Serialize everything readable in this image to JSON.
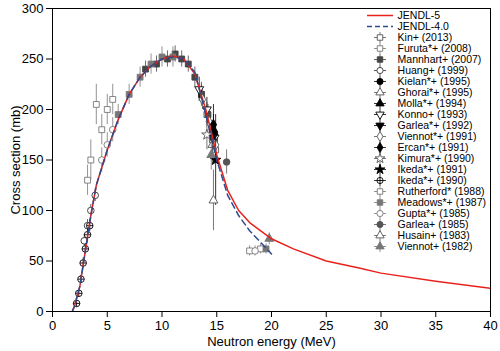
{
  "chart_data": {
    "type": "line",
    "x_label": "Neutron energy (MeV)",
    "y_label": "Cross section (mb)",
    "xlim": [
      0,
      40
    ],
    "xticks": [
      0,
      5,
      10,
      15,
      20,
      25,
      30,
      35,
      40
    ],
    "ylim": [
      0,
      300
    ],
    "yticks": [
      0,
      50,
      100,
      150,
      200,
      250,
      300
    ],
    "grid": false,
    "legend": "upper right",
    "series": [
      {
        "name": "JENDL-5",
        "type": "line",
        "line_style": "solid",
        "color": "#e8221b",
        "x": [
          1.8,
          2,
          2.5,
          3,
          3.5,
          4,
          5,
          6,
          7,
          8,
          9,
          10,
          11,
          12,
          13,
          14,
          15,
          16,
          17,
          18,
          20,
          22,
          25,
          28,
          30,
          35,
          40
        ],
        "values": [
          0,
          5,
          25,
          60,
          95,
          125,
          160,
          190,
          215,
          232,
          243,
          250,
          253,
          250,
          235,
          200,
          155,
          120,
          100,
          88,
          72,
          62,
          50,
          43,
          38,
          30,
          23
        ]
      },
      {
        "name": "JENDL-4.0",
        "type": "line",
        "line_style": "dashed",
        "color": "#2e4a8c",
        "x": [
          1.8,
          2,
          2.5,
          3,
          3.5,
          4,
          5,
          6,
          7,
          8,
          9,
          10,
          11,
          12,
          13,
          14,
          15,
          16,
          17,
          18,
          20
        ],
        "values": [
          0,
          5,
          25,
          60,
          95,
          125,
          160,
          190,
          215,
          232,
          243,
          250,
          252,
          250,
          237,
          195,
          150,
          115,
          95,
          80,
          57
        ]
      },
      {
        "name": "Kin+ (2013)",
        "type": "scatter",
        "marker": "open square",
        "color": "#555555",
        "x": [
          13.6,
          14.1,
          14.6,
          14.9
        ],
        "values": [
          215,
          195,
          170,
          160
        ],
        "errors": [
          12,
          12,
          10,
          10
        ]
      },
      {
        "name": "Furuta*+ (2008)",
        "type": "scatter",
        "marker": "open square",
        "color": "#777777",
        "x": [
          3.2,
          3.5,
          4.0,
          4.5,
          5.0,
          5.5
        ],
        "values": [
          130,
          150,
          205,
          180,
          200,
          210
        ],
        "errors": [
          15,
          20,
          20,
          15,
          15,
          15
        ]
      },
      {
        "name": "Mannhart+ (2007)",
        "type": "scatter",
        "marker": "filled square",
        "color": "#444444",
        "x": [
          8.5,
          9.5,
          10.5,
          11.2,
          11.8,
          12.4,
          13.0,
          13.6,
          14.2,
          14.8
        ],
        "values": [
          240,
          245,
          250,
          255,
          250,
          245,
          232,
          215,
          195,
          170
        ],
        "errors": [
          8,
          8,
          8,
          8,
          8,
          8,
          10,
          10,
          10,
          10
        ]
      },
      {
        "name": "Huang+ (1999)",
        "type": "scatter",
        "marker": "open circle",
        "color": "#333333",
        "x": [
          2.9,
          3.2,
          3.5,
          3.9
        ],
        "values": [
          70,
          85,
          100,
          115
        ],
        "errors": [
          6,
          6,
          6,
          6
        ]
      },
      {
        "name": "Kielan*+ (1995)",
        "type": "scatter",
        "marker": "filled circle",
        "color": "#000000",
        "x": [
          14.8
        ],
        "values": [
          175
        ],
        "errors": [
          10
        ]
      },
      {
        "name": "Ghorai*+ (1995)",
        "type": "scatter",
        "marker": "open triangle",
        "color": "#555555",
        "x": [
          14.6
        ],
        "values": [
          165
        ],
        "errors": [
          20
        ]
      },
      {
        "name": "Molla*+ (1994)",
        "type": "scatter",
        "marker": "filled triangle",
        "color": "#000000",
        "x": [
          14.7
        ],
        "values": [
          180
        ],
        "errors": [
          15
        ]
      },
      {
        "name": "Konno+ (1993)",
        "type": "scatter",
        "marker": "open triangle-down",
        "color": "#000000",
        "x": [
          13.4,
          14.1,
          14.8
        ],
        "values": [
          220,
          200,
          172
        ],
        "errors": [
          12,
          12,
          12
        ]
      },
      {
        "name": "Garlea*+ (1992)",
        "type": "scatter",
        "marker": "filled triangle-down",
        "color": "#000000",
        "x": [
          14.6
        ],
        "values": [
          172
        ],
        "errors": [
          10
        ]
      },
      {
        "name": "Viennot*+ (1991)",
        "type": "scatter",
        "marker": "open diamond",
        "color": "#555555",
        "x": [
          13.7,
          14.3,
          14.9
        ],
        "values": [
          210,
          188,
          165
        ],
        "errors": [
          10,
          10,
          10
        ]
      },
      {
        "name": "Ercan*+ (1991)",
        "type": "scatter",
        "marker": "filled diamond",
        "color": "#000000",
        "x": [
          14.7
        ],
        "values": [
          185
        ],
        "errors": [
          20
        ]
      },
      {
        "name": "Kimura*+ (1990)",
        "type": "scatter",
        "marker": "open star",
        "color": "#555555",
        "x": [
          14.1
        ],
        "values": [
          175
        ],
        "errors": [
          15
        ]
      },
      {
        "name": "Ikeda*+ (1991)",
        "type": "scatter",
        "marker": "filled star",
        "color": "#000000",
        "x": [
          14.9
        ],
        "values": [
          150
        ],
        "errors": [
          45
        ]
      },
      {
        "name": "Ikeda*+ (1990)",
        "type": "scatter",
        "marker": "open circle-plus",
        "color": "#000000",
        "x": [
          2.2,
          2.4,
          2.6,
          2.8,
          3.0,
          3.2,
          3.4
        ],
        "values": [
          8,
          18,
          32,
          48,
          62,
          76,
          85
        ],
        "errors": [
          3,
          3,
          4,
          5,
          5,
          6,
          6
        ]
      },
      {
        "name": "Rutherford* (1988)",
        "type": "scatter",
        "marker": "open square",
        "color": "#777777",
        "x": [
          18.0,
          19.0
        ],
        "values": [
          60,
          62
        ],
        "errors": [
          5,
          5
        ]
      },
      {
        "name": "Meadows*+ (1987)",
        "type": "scatter",
        "marker": "filled square",
        "color": "#777777",
        "x": [
          6.0,
          7.0,
          8.0,
          9.0,
          10.0,
          11.0,
          19.5
        ],
        "values": [
          195,
          215,
          232,
          245,
          252,
          252,
          62
        ],
        "errors": [
          10,
          10,
          10,
          10,
          10,
          10,
          5
        ]
      },
      {
        "name": "Gupta*+ (1985)",
        "type": "scatter",
        "marker": "open circle",
        "color": "#777777",
        "x": [
          4.5,
          5.0,
          5.5,
          18.5
        ],
        "values": [
          150,
          165,
          180,
          60
        ],
        "errors": [
          12,
          12,
          12,
          5
        ]
      },
      {
        "name": "Garlea+ (1985)",
        "type": "scatter",
        "marker": "filled circle",
        "color": "#555555",
        "x": [
          15.9
        ],
        "values": [
          148
        ],
        "errors": [
          12
        ]
      },
      {
        "name": "Husain+ (1983)",
        "type": "scatter",
        "marker": "open triangle",
        "color": "#555555",
        "x": [
          14.7
        ],
        "values": [
          110
        ],
        "errors": [
          30
        ]
      },
      {
        "name": "Viennot+ (1982)",
        "type": "scatter",
        "marker": "filled triangle",
        "color": "#777777",
        "x": [
          14.5,
          19.8
        ],
        "values": [
          155,
          72
        ],
        "errors": [
          15,
          6
        ]
      }
    ]
  }
}
